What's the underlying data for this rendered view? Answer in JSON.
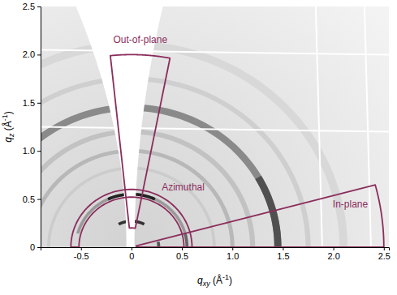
{
  "chart_data": {
    "type": "giwaxs",
    "xlabel": {
      "symbol": "q",
      "subscript": "xy",
      "unit": " (Å",
      "superscript": "-1",
      "close": ")"
    },
    "ylabel": {
      "symbol": "q",
      "subscript": "z",
      "unit": " (Å",
      "superscript": "-1",
      "close": ")"
    },
    "xlim": [
      -0.9,
      2.55
    ],
    "xticks": [
      -0.5,
      0,
      0.5,
      {
        "value": 1,
        "label": "1.0"
      },
      1.5,
      {
        "value": 2,
        "label": "2.0"
      },
      2.5
    ],
    "ylim": [
      0,
      2.5
    ],
    "yticks": [
      0,
      0.5,
      {
        "value": 1,
        "label": "1.0"
      },
      1.5,
      {
        "value": 2,
        "label": "2.0"
      },
      2.5
    ],
    "rings": [
      {
        "q": 0.27,
        "dq": 0.03,
        "chi": [
          62,
          118
        ],
        "color": "#333333"
      },
      {
        "q": 0.27,
        "dq": 0.03,
        "chi": [
          0,
          12
        ],
        "color": "#555555"
      },
      {
        "q": 0.55,
        "dq": 0.03,
        "chi": [
          15,
          165
        ],
        "color": "#9a9a9a"
      },
      {
        "q": 0.55,
        "dq": 0.03,
        "chi": [
          65,
          115
        ],
        "color": "#222222"
      },
      {
        "q": 0.55,
        "dq": 0.03,
        "chi": [
          0,
          15
        ],
        "color": "#666666"
      },
      {
        "q": 0.82,
        "dq": 0.03,
        "chi": [
          0,
          180
        ],
        "color": "#cccccc"
      },
      {
        "q": 1.0,
        "dq": 0.04,
        "chi": [
          0,
          180
        ],
        "color": "#b8b8b8"
      },
      {
        "q": 1.2,
        "dq": 0.05,
        "chi": [
          0,
          180
        ],
        "color": "#c2c2c2"
      },
      {
        "q": 1.45,
        "dq": 0.07,
        "chi": [
          0,
          180
        ],
        "color": "#8a8a8a"
      },
      {
        "q": 1.45,
        "dq": 0.07,
        "chi": [
          0,
          30
        ],
        "color": "#505050"
      },
      {
        "q": 1.75,
        "dq": 0.05,
        "chi": [
          0,
          180
        ],
        "color": "#cfcfcf"
      },
      {
        "q": 2.1,
        "dq": 0.08,
        "chi": [
          0,
          180
        ],
        "color": "#d8d8d8"
      }
    ],
    "regions": [
      {
        "label": "Out-of-plane",
        "q": [
          0.2,
          2.0
        ],
        "chi": [
          79,
          96
        ]
      },
      {
        "label": "Azimuthal",
        "q": [
          0.52,
          0.6
        ],
        "chi": [
          0,
          180
        ]
      },
      {
        "label": "In-plane",
        "q": [
          0.05,
          2.5
        ],
        "chi": [
          0,
          15
        ]
      }
    ],
    "color": "#8b2d5c"
  }
}
